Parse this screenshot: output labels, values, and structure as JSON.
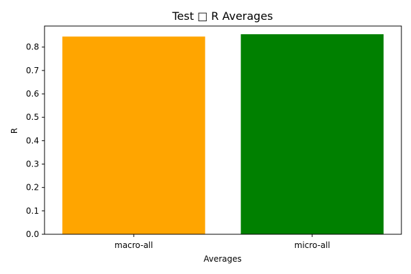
{
  "chart_data": {
    "type": "bar",
    "title": "Test □ R Averages",
    "xlabel": "Averages",
    "ylabel": "R",
    "categories": [
      "macro-all",
      "micro-all"
    ],
    "values": [
      0.845,
      0.855
    ],
    "bar_colors": [
      "#ffa500",
      "#008000"
    ],
    "ylim": [
      0,
      0.89
    ],
    "yticks": [
      "0.0",
      "0.1",
      "0.2",
      "0.3",
      "0.4",
      "0.5",
      "0.6",
      "0.7",
      "0.8"
    ],
    "grid": false,
    "legend": "none"
  }
}
